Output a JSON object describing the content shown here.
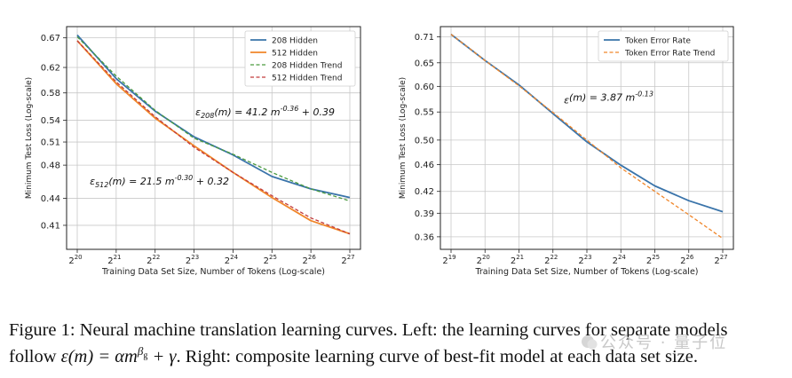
{
  "chart_data": [
    {
      "type": "line",
      "title": "",
      "xlabel": "Training Data Set Size, Number of Tokens (Log-scale)",
      "ylabel": "Minimum Test Loss (Log-scale)",
      "x_scale": "log2",
      "y_scale": "log",
      "xlim": [
        1,
        128
      ],
      "ylim": [
        0.385,
        0.69
      ],
      "x_ticks": [
        1,
        2,
        4,
        8,
        16,
        32,
        64,
        128
      ],
      "x_tick_base": "2",
      "x_tick_exponents": [
        "20",
        "21",
        "22",
        "23",
        "24",
        "25",
        "26",
        "27"
      ],
      "y_ticks": [
        0.41,
        0.44,
        0.48,
        0.51,
        0.54,
        0.58,
        0.62,
        0.67
      ],
      "y_tick_labels": [
        "0.41",
        "0.44",
        "0.48",
        "0.51",
        "0.54",
        "0.58",
        "0.62",
        "0.67"
      ],
      "x_unit_note": "x values in units of 2^20 tokens",
      "grid": true,
      "legend_position": "top-right",
      "series": [
        {
          "name": "208 Hidden",
          "color": "#3a74aa",
          "dash": "solid",
          "x": [
            1,
            2,
            4,
            8,
            16,
            32,
            64,
            128
          ],
          "y": [
            0.675,
            0.602,
            0.553,
            0.517,
            0.493,
            0.466,
            0.451,
            0.441
          ]
        },
        {
          "name": "512 Hidden",
          "color": "#f0862a",
          "dash": "solid",
          "x": [
            1,
            2,
            4,
            8,
            16,
            32,
            64,
            128
          ],
          "y": [
            0.665,
            0.594,
            0.543,
            0.505,
            0.471,
            0.441,
            0.415,
            0.401
          ]
        },
        {
          "name": "208 Hidden Trend",
          "color": "#4a9a3f",
          "dash": "dashed",
          "x": [
            1,
            2,
            4,
            8,
            16,
            32,
            64,
            128
          ],
          "y": [
            0.672,
            0.606,
            0.554,
            0.515,
            0.494,
            0.471,
            0.451,
            0.437
          ]
        },
        {
          "name": "512 Hidden Trend",
          "color": "#c23b3b",
          "dash": "dashed",
          "x": [
            1,
            2,
            4,
            8,
            16,
            32,
            64,
            128
          ],
          "y": [
            0.665,
            0.597,
            0.545,
            0.503,
            0.471,
            0.443,
            0.418,
            0.401
          ]
        }
      ],
      "annotations": [
        {
          "prefix": "ε",
          "sub": "208",
          "mid": "(m) = 41.2 m",
          "sup": "-0.36",
          "suffix": " + 0.39",
          "at": [
            8.2,
            0.547
          ]
        },
        {
          "prefix": "ε",
          "sub": "512",
          "mid": "(m) = 21.5 m",
          "sup": "-0.30",
          "suffix": " + 0.32",
          "at": [
            1.25,
            0.456
          ]
        }
      ]
    },
    {
      "type": "line",
      "title": "",
      "xlabel": "Training Data Set Size, Number of Tokens (Log-scale)",
      "ylabel": "Minimum Test Loss (Log-scale)",
      "x_scale": "log2",
      "y_scale": "log",
      "xlim": [
        0.5,
        128
      ],
      "ylim": [
        0.345,
        0.735
      ],
      "x_ticks": [
        0.5,
        1,
        2,
        4,
        8,
        16,
        32,
        64,
        128
      ],
      "x_tick_base": "2",
      "x_tick_exponents": [
        "19",
        "20",
        "21",
        "22",
        "23",
        "24",
        "25",
        "26",
        "27"
      ],
      "y_ticks": [
        0.36,
        0.39,
        0.42,
        0.46,
        0.5,
        0.55,
        0.6,
        0.65,
        0.71
      ],
      "y_tick_labels": [
        "0.36",
        "0.39",
        "0.42",
        "0.46",
        "0.50",
        "0.55",
        "0.60",
        "0.65",
        "0.71"
      ],
      "x_unit_note": "x values in units of 2^20 tokens",
      "grid": true,
      "legend_position": "top-right",
      "series": [
        {
          "name": "Token Error Rate",
          "color": "#3a74aa",
          "dash": "solid",
          "x": [
            0.5,
            1,
            2,
            4,
            8,
            16,
            32,
            64,
            128
          ],
          "y": [
            0.716,
            0.655,
            0.603,
            0.547,
            0.497,
            0.459,
            0.428,
            0.407,
            0.392
          ]
        },
        {
          "name": "Token Error Rate Trend",
          "color": "#f0862a",
          "dash": "dashed",
          "x": [
            0.5,
            1,
            2,
            4,
            8,
            16,
            32,
            64,
            128
          ],
          "y": [
            0.716,
            0.655,
            0.601,
            0.549,
            0.5,
            0.455,
            0.42,
            0.388,
            0.358
          ]
        }
      ],
      "annotations": [
        {
          "prefix": "ε",
          "sub": "",
          "mid": "(m) = 3.87 m",
          "sup": "-0.13",
          "suffix": "",
          "at": [
            5.0,
            0.566
          ]
        }
      ]
    }
  ],
  "caption": {
    "line1": "Figure 1: Neural machine translation learning curves. Left: the learning curves for separate models",
    "line2": "follow ε(m) = αm^βg + γ. Right: composite learning curve of best-fit model at each data set size."
  },
  "watermark": "公众号 · 量子位"
}
